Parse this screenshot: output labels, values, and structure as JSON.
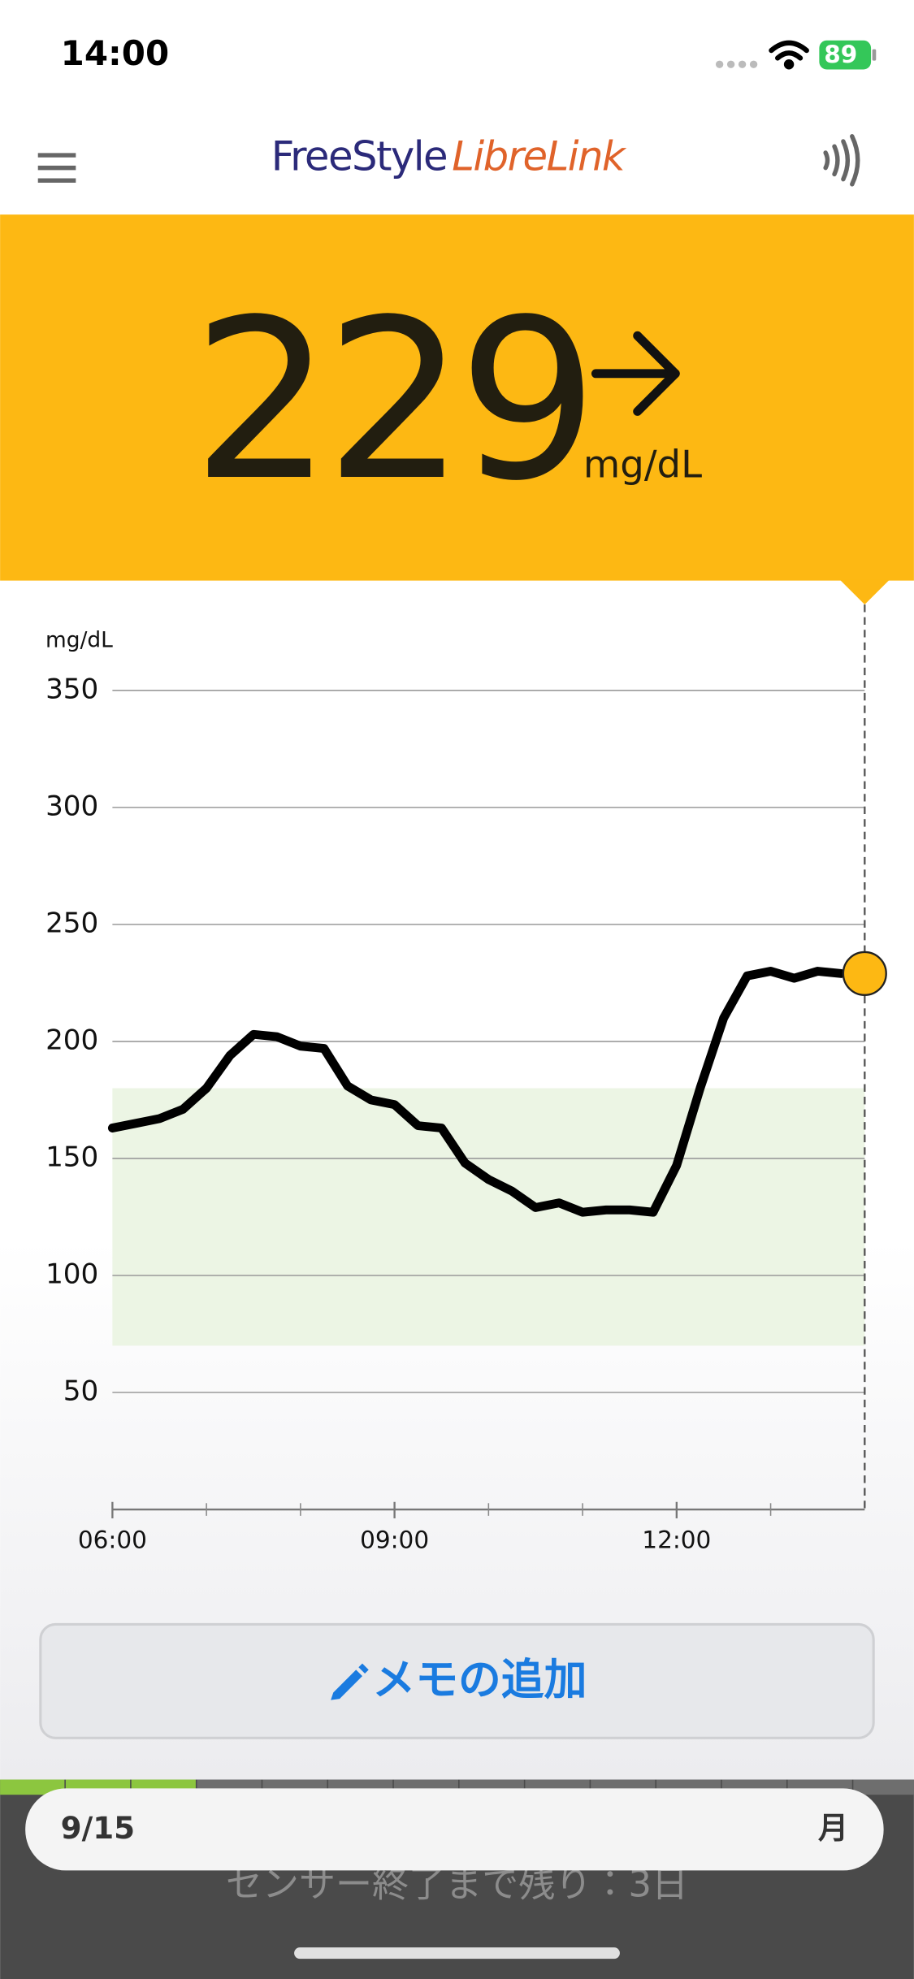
{
  "status_bar": {
    "time": "14:00",
    "battery": "89"
  },
  "header": {
    "brand": "FreeStyle",
    "product": "LibreLink"
  },
  "reading": {
    "value": "229",
    "unit": "mg/dL"
  },
  "chart_data": {
    "type": "line",
    "y_label": "mg/dL",
    "x": [
      6,
      6.25,
      6.5,
      6.75,
      7,
      7.25,
      7.5,
      7.75,
      8,
      8.25,
      8.5,
      8.75,
      9,
      9.25,
      9.5,
      9.75,
      10,
      10.25,
      10.5,
      10.75,
      11,
      11.25,
      11.5,
      11.75,
      12,
      12.25,
      12.5,
      12.75,
      13,
      13.25,
      13.5,
      13.75
    ],
    "series": [
      {
        "color": "#000000",
        "values": [
          163,
          165,
          167,
          171,
          180,
          194,
          203,
          202,
          198,
          197,
          181,
          175,
          173,
          164,
          163,
          148,
          141,
          136,
          129,
          131,
          127,
          128,
          128,
          127,
          147,
          180,
          210,
          228,
          230,
          227,
          230,
          229
        ]
      }
    ],
    "current": {
      "x": 14,
      "value": 229,
      "color": "#fdb813"
    },
    "target_range": {
      "low": 70,
      "high": 180,
      "color": "#ecf5e4"
    },
    "xlim": [
      6,
      14
    ],
    "xticks": [
      {
        "value": 6,
        "label": "06:00"
      },
      {
        "value": 9,
        "label": "09:00"
      },
      {
        "value": 12,
        "label": "12:00"
      }
    ],
    "minor_xticks": [
      7,
      8,
      10,
      11,
      13
    ],
    "ylim": [
      0,
      350
    ],
    "yticks": [
      50,
      100,
      150,
      200,
      250,
      300,
      350
    ],
    "grid": true
  },
  "memo_button": {
    "label": "メモの追加"
  },
  "footer": {
    "date": "9/15",
    "weekday": "月",
    "sensor_status": "センサー終了まで残り：3日"
  }
}
